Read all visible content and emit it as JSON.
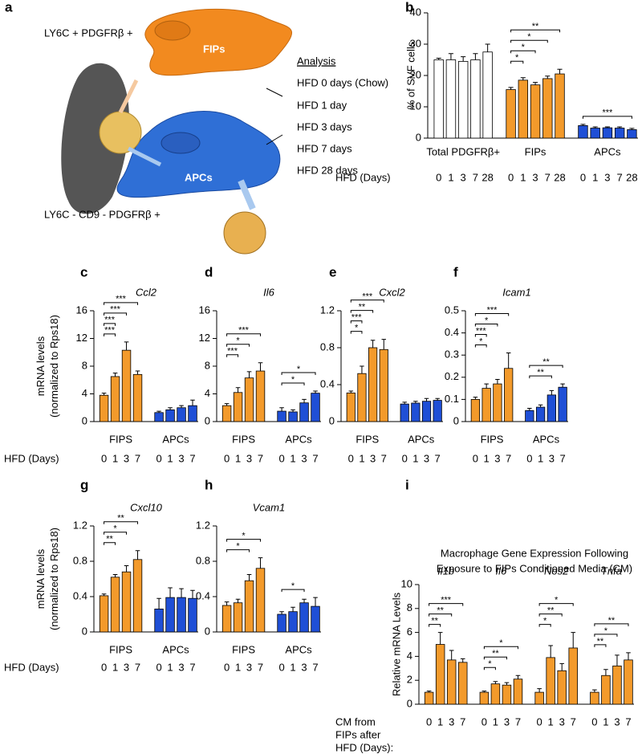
{
  "diagram": {
    "panel": "a",
    "top_label": "LY6C + PDGFRβ +",
    "cell1": "FIPs",
    "cell2": "APCs",
    "bottom_label": "LY6C - CD9 - PDGFRβ +",
    "analysis_title": "Analysis",
    "analysis_items": [
      "HFD 0 days (Chow)",
      "HFD 1 day",
      "HFD 3 days",
      "HFD 7 days",
      "HFD 28 days"
    ]
  },
  "chart_data": [
    {
      "type": "bar",
      "panel": "b",
      "ylabel": [
        "% of SVF cells"
      ],
      "xlabel": [
        "HFD (Days)"
      ],
      "categories": [
        "0",
        "1",
        "3",
        "7",
        "28"
      ],
      "ylim": [
        0,
        40
      ],
      "yticks": [
        0,
        10,
        20,
        30,
        40
      ],
      "group_label_position": "bottom",
      "groups": [
        {
          "name": "Total PDGFRβ+",
          "color": "#ffffff",
          "values": [
            25,
            25,
            24.5,
            25,
            27.5
          ],
          "errors": [
            0.5,
            2,
            1.5,
            2,
            2.5
          ],
          "brackets": []
        },
        {
          "name": "FIPs",
          "color": "#f39a2b",
          "values": [
            15.5,
            18.5,
            17,
            19,
            20.5
          ],
          "errors": [
            0.7,
            0.8,
            0.8,
            0.8,
            1.5
          ],
          "brackets": [
            {
              "between": [
                "0",
                "1"
              ],
              "label": "*"
            },
            {
              "between": [
                "0",
                "3"
              ],
              "label": "*"
            },
            {
              "between": [
                "0",
                "7"
              ],
              "label": "*"
            },
            {
              "between": [
                "0",
                "28"
              ],
              "label": "**"
            }
          ]
        },
        {
          "name": "APCs",
          "color": "#1f4fd6",
          "values": [
            4,
            3.2,
            3.3,
            3.2,
            2.7
          ],
          "errors": [
            0.4,
            0.4,
            0.3,
            0.4,
            0.4
          ],
          "brackets": [
            {
              "between": [
                "0",
                "28"
              ],
              "label": "***"
            }
          ]
        }
      ]
    },
    {
      "type": "bar",
      "panel": "c",
      "title": "Ccl2",
      "ylabel": [
        "mRNA levels",
        "(normalized to Rps18)"
      ],
      "xlabel": [
        "HFD (Days)"
      ],
      "categories": [
        "0",
        "1",
        "3",
        "7"
      ],
      "ylim": [
        0,
        16
      ],
      "yticks": [
        0,
        4,
        8,
        12,
        16
      ],
      "group_label_position": "bottom",
      "groups": [
        {
          "name": "FIPS",
          "color": "#f39a2b",
          "values": [
            3.8,
            6.5,
            10.3,
            6.8
          ],
          "errors": [
            0.3,
            0.5,
            1.2,
            0.5
          ],
          "brackets": [
            {
              "between": [
                "0",
                "1"
              ],
              "label": "***"
            },
            {
              "between": [
                "0",
                "1"
              ],
              "label": "***"
            },
            {
              "between": [
                "0",
                "3"
              ],
              "label": "***"
            },
            {
              "between": [
                "0",
                "7"
              ],
              "label": "***"
            }
          ]
        },
        {
          "name": "APCs",
          "color": "#1f4fd6",
          "values": [
            1.3,
            1.7,
            2,
            2.3
          ],
          "errors": [
            0.2,
            0.3,
            0.3,
            0.8
          ],
          "brackets": []
        }
      ]
    },
    {
      "type": "bar",
      "panel": "d",
      "title": "Il6",
      "categories": [
        "0",
        "1",
        "3",
        "7"
      ],
      "ylim": [
        0,
        16
      ],
      "yticks": [
        0,
        4,
        8,
        12,
        16
      ],
      "group_label_position": "bottom",
      "groups": [
        {
          "name": "FIPS",
          "color": "#f39a2b",
          "values": [
            2.3,
            4.2,
            6.3,
            7.3
          ],
          "errors": [
            0.3,
            0.7,
            0.9,
            1.2
          ],
          "brackets": [
            {
              "between": [
                "0",
                "1"
              ],
              "label": "***"
            },
            {
              "between": [
                "0",
                "3"
              ],
              "label": "*"
            },
            {
              "between": [
                "0",
                "7"
              ],
              "label": "***"
            }
          ]
        },
        {
          "name": "APCs",
          "color": "#1f4fd6",
          "values": [
            1.5,
            1.4,
            2.7,
            4.1
          ],
          "errors": [
            0.5,
            0.3,
            0.5,
            0.3
          ],
          "brackets": [
            {
              "between": [
                "0",
                "3"
              ],
              "label": "*"
            },
            {
              "between": [
                "0",
                "7"
              ],
              "label": "*"
            }
          ]
        }
      ]
    },
    {
      "type": "bar",
      "panel": "e",
      "title": "Cxcl2",
      "categories": [
        "0",
        "1",
        "3",
        "7"
      ],
      "ylim": [
        0,
        1.2
      ],
      "yticks": [
        0,
        0.4,
        0.8,
        1.2
      ],
      "group_label_position": "bottom",
      "groups": [
        {
          "name": "FIPS",
          "color": "#f39a2b",
          "values": [
            0.31,
            0.52,
            0.8,
            0.78
          ],
          "errors": [
            0.02,
            0.08,
            0.08,
            0.11
          ],
          "brackets": [
            {
              "between": [
                "0",
                "1"
              ],
              "label": "*"
            },
            {
              "between": [
                "0",
                "1"
              ],
              "label": "***"
            },
            {
              "between": [
                "0",
                "3"
              ],
              "label": "**"
            },
            {
              "between": [
                "0",
                "7"
              ],
              "label": "***"
            }
          ]
        },
        {
          "name": "APCs",
          "color": "#1f4fd6",
          "values": [
            0.19,
            0.2,
            0.22,
            0.23
          ],
          "errors": [
            0.02,
            0.02,
            0.03,
            0.02
          ],
          "brackets": []
        }
      ]
    },
    {
      "type": "bar",
      "panel": "f",
      "title": "Icam1",
      "categories": [
        "0",
        "1",
        "3",
        "7"
      ],
      "ylim": [
        0,
        0.5
      ],
      "yticks": [
        0,
        0.1,
        0.2,
        0.3,
        0.4,
        0.5
      ],
      "group_label_position": "bottom",
      "groups": [
        {
          "name": "FIPS",
          "color": "#f39a2b",
          "values": [
            0.1,
            0.15,
            0.17,
            0.24
          ],
          "errors": [
            0.01,
            0.02,
            0.02,
            0.07
          ],
          "brackets": [
            {
              "between": [
                "0",
                "1"
              ],
              "label": "*"
            },
            {
              "between": [
                "0",
                "1"
              ],
              "label": "***"
            },
            {
              "between": [
                "0",
                "3"
              ],
              "label": "*"
            },
            {
              "between": [
                "0",
                "7"
              ],
              "label": "***"
            }
          ]
        },
        {
          "name": "APCs",
          "color": "#1f4fd6",
          "values": [
            0.05,
            0.065,
            0.12,
            0.155
          ],
          "errors": [
            0.01,
            0.01,
            0.02,
            0.015
          ],
          "brackets": [
            {
              "between": [
                "0",
                "3"
              ],
              "label": "**"
            },
            {
              "between": [
                "0",
                "7"
              ],
              "label": "**"
            }
          ]
        }
      ]
    },
    {
      "type": "bar",
      "panel": "g",
      "title": "Cxcl10",
      "ylabel": [
        "mRNA levels",
        "(normalized to Rps18)"
      ],
      "xlabel": [
        "HFD (Days)"
      ],
      "categories": [
        "0",
        "1",
        "3",
        "7"
      ],
      "ylim": [
        0,
        1.2
      ],
      "yticks": [
        0,
        0.4,
        0.8,
        1.2
      ],
      "group_label_position": "bottom",
      "groups": [
        {
          "name": "FIPS",
          "color": "#f39a2b",
          "values": [
            0.41,
            0.62,
            0.68,
            0.82
          ],
          "errors": [
            0.02,
            0.03,
            0.07,
            0.1
          ],
          "brackets": [
            {
              "between": [
                "0",
                "1"
              ],
              "label": "**"
            },
            {
              "between": [
                "0",
                "3"
              ],
              "label": "*"
            },
            {
              "between": [
                "0",
                "7"
              ],
              "label": "**"
            }
          ]
        },
        {
          "name": "APCs",
          "color": "#1f4fd6",
          "values": [
            0.26,
            0.39,
            0.39,
            0.38
          ],
          "errors": [
            0.12,
            0.11,
            0.1,
            0.09
          ],
          "brackets": []
        }
      ]
    },
    {
      "type": "bar",
      "panel": "h",
      "title": "Vcam1",
      "categories": [
        "0",
        "1",
        "3",
        "7"
      ],
      "ylim": [
        0,
        1.2
      ],
      "yticks": [
        0,
        0.4,
        0.8,
        1.2
      ],
      "group_label_position": "bottom",
      "groups": [
        {
          "name": "FIPS",
          "color": "#f39a2b",
          "values": [
            0.3,
            0.33,
            0.58,
            0.72
          ],
          "errors": [
            0.04,
            0.04,
            0.07,
            0.12
          ],
          "brackets": [
            {
              "between": [
                "0",
                "3"
              ],
              "label": "*"
            },
            {
              "between": [
                "0",
                "7"
              ],
              "label": "*"
            }
          ]
        },
        {
          "name": "APCs",
          "color": "#1f4fd6",
          "values": [
            0.2,
            0.23,
            0.33,
            0.29
          ],
          "errors": [
            0.03,
            0.05,
            0.04,
            0.1
          ],
          "brackets": [
            {
              "between": [
                "0",
                "3"
              ],
              "label": "*"
            }
          ]
        }
      ]
    },
    {
      "type": "bar",
      "panel": "i",
      "title": [
        "Macrophage Gene Expression Following",
        "Exposure to FIPs Conditioned Media (CM)"
      ],
      "ylabel": [
        "Relative mRNA Levels"
      ],
      "xlabel": [
        "CM from",
        "FIPs after",
        "HFD (Days):"
      ],
      "categories": [
        "0",
        "1",
        "3",
        "7"
      ],
      "ylim": [
        0,
        10
      ],
      "yticks": [
        0,
        2,
        4,
        6,
        8,
        10
      ],
      "group_label_position": "top",
      "groups": [
        {
          "name": "Il1b",
          "color": "#f39a2b",
          "values": [
            1,
            5,
            3.7,
            3.5
          ],
          "errors": [
            0.1,
            1,
            0.8,
            0.3
          ],
          "brackets": [
            {
              "between": [
                "0",
                "1"
              ],
              "label": "**"
            },
            {
              "between": [
                "0",
                "3"
              ],
              "label": "**"
            },
            {
              "between": [
                "0",
                "7"
              ],
              "label": "***"
            }
          ]
        },
        {
          "name": "Il6",
          "color": "#f39a2b",
          "values": [
            1,
            1.7,
            1.6,
            2.1
          ],
          "errors": [
            0.1,
            0.2,
            0.2,
            0.3
          ],
          "brackets": [
            {
              "between": [
                "0",
                "1"
              ],
              "label": "*"
            },
            {
              "between": [
                "0",
                "3"
              ],
              "label": "**"
            },
            {
              "between": [
                "0",
                "7"
              ],
              "label": "*"
            }
          ]
        },
        {
          "name": "Nos2",
          "color": "#f39a2b",
          "values": [
            1,
            3.9,
            2.8,
            4.7
          ],
          "errors": [
            0.3,
            1,
            0.6,
            1.3
          ],
          "brackets": [
            {
              "between": [
                "0",
                "1"
              ],
              "label": "*"
            },
            {
              "between": [
                "0",
                "3"
              ],
              "label": "**"
            },
            {
              "between": [
                "0",
                "7"
              ],
              "label": "*"
            }
          ]
        },
        {
          "name": "Tnfa",
          "color": "#f39a2b",
          "values": [
            1,
            2.4,
            3.2,
            3.7
          ],
          "errors": [
            0.2,
            0.5,
            0.9,
            0.6
          ],
          "brackets": [
            {
              "between": [
                "0",
                "1"
              ],
              "label": "**"
            },
            {
              "between": [
                "0",
                "3"
              ],
              "label": "*"
            },
            {
              "between": [
                "0",
                "7"
              ],
              "label": "**"
            }
          ]
        }
      ]
    }
  ]
}
